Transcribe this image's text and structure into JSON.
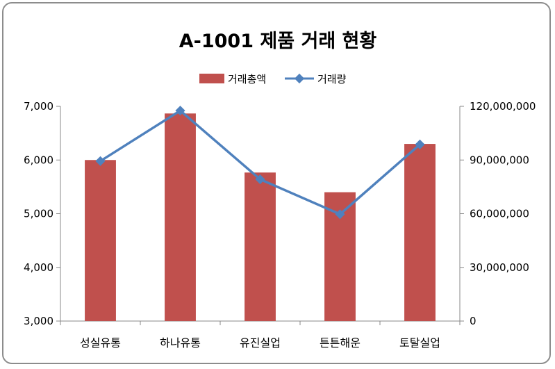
{
  "chart_data": {
    "type": "bar+line",
    "title": "A-1001 제품 거래 현황",
    "categories": [
      "성실유통",
      "하나유통",
      "유진실업",
      "튼튼해운",
      "토탈실업"
    ],
    "series": [
      {
        "name": "거래총액",
        "type": "bar",
        "axis": "right",
        "values": [
          90000000,
          116000000,
          83000000,
          72000000,
          99000000
        ],
        "color": "#c0504d"
      },
      {
        "name": "거래량",
        "type": "line",
        "axis": "left",
        "values": [
          5980,
          6920,
          5640,
          4990,
          6290
        ],
        "color": "#4f81bd"
      }
    ],
    "left_axis": {
      "min": 3000,
      "max": 7000,
      "ticks": [
        "3,000",
        "4,000",
        "5,000",
        "6,000",
        "7,000"
      ]
    },
    "right_axis": {
      "min": 0,
      "max": 120000000,
      "ticks": [
        "0",
        "30,000,000",
        "60,000,000",
        "90,000,000",
        "120,000,000"
      ]
    },
    "legend_position": "top",
    "grid": false
  }
}
